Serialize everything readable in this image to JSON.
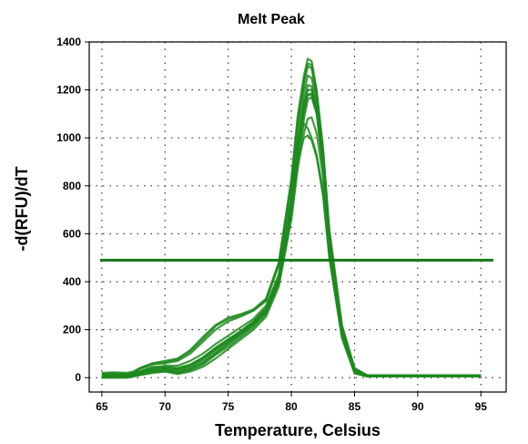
{
  "chart_data": {
    "type": "line",
    "title": "Melt Peak",
    "xlabel": "Temperature, Celsius",
    "ylabel": "-d(RFU)/dT",
    "xlim": [
      64,
      97
    ],
    "ylim": [
      -60,
      1400
    ],
    "xticks": [
      65,
      70,
      75,
      80,
      85,
      90,
      95
    ],
    "yticks": [
      0,
      200,
      400,
      600,
      800,
      1000,
      1200,
      1400
    ],
    "grid": true,
    "threshold": 490,
    "line_color": "#1e8a1e",
    "threshold_color": "#127a12",
    "series": [
      {
        "x": [
          65,
          66,
          67,
          67.5,
          68,
          69,
          70,
          71,
          72,
          73,
          74,
          75,
          76,
          77,
          78,
          79,
          80,
          80.5,
          81,
          81.3,
          81.6,
          82,
          82.5,
          83,
          84,
          85,
          86,
          88,
          90,
          92,
          95
        ],
        "y": [
          20,
          22,
          20,
          25,
          40,
          60,
          70,
          80,
          115,
          170,
          220,
          250,
          265,
          285,
          330,
          480,
          830,
          1090,
          1260,
          1330,
          1320,
          1200,
          960,
          620,
          220,
          40,
          10,
          10,
          10,
          10,
          10
        ]
      },
      {
        "x": [
          65,
          66,
          67,
          67.5,
          68,
          69,
          70,
          71,
          72,
          73,
          74,
          75,
          76,
          77,
          78,
          79,
          80,
          80.5,
          81,
          81.3,
          81.6,
          82,
          82.5,
          83,
          84,
          85,
          86,
          88,
          90,
          92,
          95
        ],
        "y": [
          15,
          15,
          15,
          20,
          35,
          55,
          60,
          70,
          100,
          150,
          200,
          235,
          255,
          280,
          320,
          470,
          800,
          1050,
          1230,
          1300,
          1290,
          1180,
          940,
          600,
          210,
          35,
          10,
          10,
          10,
          10,
          10
        ]
      },
      {
        "x": [
          65,
          66,
          67,
          67.5,
          68,
          69,
          70,
          71,
          72,
          73,
          74,
          75,
          76,
          77,
          78,
          79,
          80,
          80.5,
          81,
          81.3,
          81.6,
          82,
          82.5,
          83,
          84,
          85,
          86,
          88,
          90,
          92,
          95
        ],
        "y": [
          10,
          12,
          12,
          15,
          25,
          40,
          50,
          50,
          70,
          100,
          140,
          175,
          210,
          245,
          300,
          430,
          760,
          1000,
          1190,
          1260,
          1250,
          1150,
          920,
          590,
          200,
          30,
          10,
          10,
          10,
          10,
          10
        ]
      },
      {
        "x": [
          65,
          66,
          67,
          67.5,
          68,
          69,
          70,
          71,
          72,
          73,
          74,
          75,
          76,
          77,
          78,
          79,
          80,
          80.5,
          81,
          81.3,
          81.6,
          82,
          82.5,
          83,
          84,
          85,
          86,
          88,
          90,
          92,
          95
        ],
        "y": [
          5,
          5,
          8,
          10,
          20,
          30,
          35,
          30,
          45,
          75,
          115,
          150,
          190,
          225,
          280,
          410,
          720,
          960,
          1150,
          1220,
          1215,
          1120,
          900,
          580,
          190,
          30,
          10,
          10,
          10,
          10,
          10
        ]
      },
      {
        "x": [
          65,
          66,
          67,
          67.5,
          68,
          69,
          70,
          71,
          72,
          73,
          74,
          75,
          76,
          77,
          78,
          79,
          80,
          80.5,
          81,
          81.3,
          81.6,
          82,
          82.5,
          83,
          84,
          85,
          86,
          88,
          90,
          92,
          95
        ],
        "y": [
          0,
          0,
          5,
          8,
          15,
          25,
          30,
          20,
          30,
          55,
          95,
          130,
          170,
          210,
          265,
          390,
          680,
          900,
          1080,
          1160,
          1170,
          1100,
          880,
          570,
          185,
          25,
          8,
          8,
          8,
          8,
          8
        ]
      },
      {
        "x": [
          65,
          66,
          67,
          67.5,
          68,
          69,
          70,
          71,
          72,
          73,
          74,
          75,
          76,
          77,
          78,
          79,
          80,
          80.5,
          81,
          81.3,
          81.6,
          82,
          82.5,
          83,
          84,
          85,
          86,
          88,
          90,
          92,
          95
        ],
        "y": [
          10,
          10,
          10,
          12,
          25,
          45,
          45,
          40,
          55,
          85,
          125,
          160,
          195,
          235,
          290,
          420,
          740,
          980,
          1120,
          1180,
          1185,
          1110,
          890,
          575,
          195,
          30,
          10,
          10,
          10,
          10,
          10
        ]
      },
      {
        "x": [
          65,
          66,
          67,
          67.5,
          68,
          69,
          70,
          71,
          72,
          73,
          74,
          75,
          76,
          77,
          78,
          79,
          80,
          80.5,
          81,
          81.3,
          81.6,
          82,
          82.5,
          83,
          84,
          85,
          86,
          88,
          90,
          92,
          95
        ],
        "y": [
          0,
          0,
          0,
          5,
          10,
          20,
          25,
          15,
          25,
          45,
          80,
          120,
          160,
          200,
          255,
          380,
          660,
          870,
          1020,
          1080,
          1085,
          1020,
          840,
          545,
          175,
          20,
          5,
          5,
          5,
          5,
          5
        ]
      },
      {
        "x": [
          65,
          66,
          67,
          67.5,
          68,
          69,
          70,
          71,
          72,
          73,
          74,
          75,
          76,
          77,
          78,
          79,
          80,
          80.5,
          81,
          81.3,
          81.6,
          82,
          82.5,
          83,
          84,
          85,
          86,
          88,
          90,
          92,
          95
        ],
        "y": [
          5,
          5,
          5,
          8,
          18,
          35,
          40,
          35,
          50,
          80,
          120,
          155,
          190,
          230,
          285,
          415,
          730,
          940,
          1060,
          1040,
          1000,
          930,
          780,
          515,
          170,
          20,
          5,
          5,
          5,
          5,
          5
        ]
      },
      {
        "x": [
          65,
          66,
          67,
          67.5,
          68,
          69,
          70,
          71,
          72,
          73,
          74,
          75,
          76,
          77,
          78,
          79,
          80,
          80.5,
          81,
          81.3,
          81.6,
          82,
          82.5,
          83,
          84,
          85,
          86,
          88,
          90,
          92,
          95
        ],
        "y": [
          0,
          0,
          0,
          5,
          12,
          22,
          28,
          20,
          35,
          60,
          100,
          140,
          180,
          220,
          275,
          400,
          700,
          910,
          1000,
          1010,
          990,
          920,
          760,
          500,
          165,
          18,
          5,
          5,
          5,
          5,
          5
        ]
      },
      {
        "x": [
          65,
          66,
          67,
          67.5,
          68,
          69,
          70,
          71,
          72,
          73,
          74,
          75,
          76,
          77,
          78,
          79,
          80,
          80.5,
          81,
          81.3,
          81.6,
          82,
          82.5,
          83,
          84,
          85,
          86,
          88,
          90,
          92,
          95
        ],
        "y": [
          15,
          18,
          15,
          22,
          38,
          58,
          65,
          75,
          110,
          160,
          215,
          245,
          260,
          280,
          325,
          475,
          820,
          1070,
          1240,
          1310,
          1305,
          1190,
          950,
          610,
          215,
          38,
          10,
          10,
          10,
          10,
          10
        ]
      },
      {
        "x": [
          65,
          66,
          67,
          67.5,
          68,
          69,
          70,
          71,
          72,
          73,
          74,
          75,
          76,
          77,
          78,
          79,
          80,
          80.5,
          81,
          81.3,
          81.6,
          82,
          82.5,
          83,
          84,
          85,
          86,
          88,
          90,
          92,
          95
        ],
        "y": [
          8,
          8,
          10,
          12,
          22,
          38,
          42,
          38,
          52,
          82,
          122,
          158,
          192,
          232,
          288,
          418,
          735,
          970,
          1140,
          1200,
          1200,
          1130,
          905,
          585,
          195,
          32,
          10,
          10,
          10,
          10,
          10
        ]
      },
      {
        "x": [
          65,
          66,
          67,
          67.5,
          68,
          69,
          70,
          71,
          72,
          73,
          74,
          75,
          76,
          77,
          78,
          79,
          80,
          80.5,
          81,
          81.3,
          81.6,
          82,
          82.5,
          83,
          84,
          85,
          86,
          88,
          90,
          92,
          95
        ],
        "y": [
          3,
          3,
          5,
          8,
          16,
          28,
          32,
          25,
          38,
          65,
          105,
          145,
          182,
          220,
          272,
          398,
          700,
          930,
          1110,
          1180,
          1180,
          1110,
          885,
          570,
          185,
          25,
          8,
          8,
          8,
          8,
          8
        ]
      }
    ]
  }
}
